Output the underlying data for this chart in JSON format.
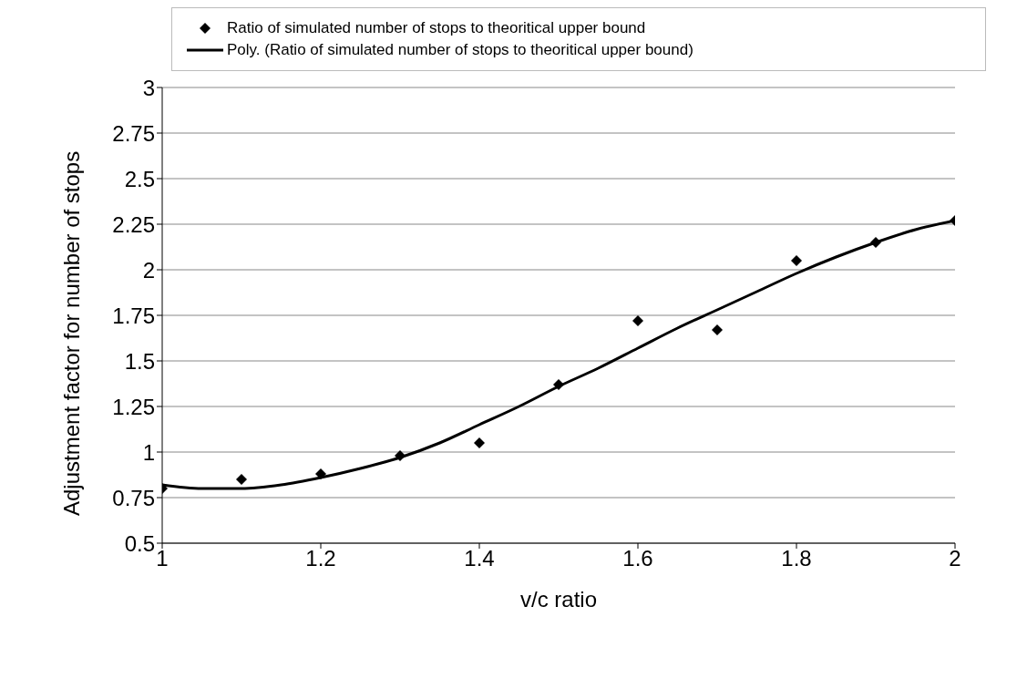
{
  "chart_data": {
    "type": "scatter",
    "xlabel": "v/c ratio",
    "ylabel": "Adjustment factor for number of stops",
    "xlim": [
      1,
      2
    ],
    "xticks": [
      1,
      1.2,
      1.4,
      1.6,
      1.8,
      2
    ],
    "ylim": [
      0.5,
      3
    ],
    "yticks": [
      0.5,
      0.75,
      1,
      1.25,
      1.5,
      1.75,
      2,
      2.25,
      2.5,
      2.75,
      3
    ],
    "grid": "y",
    "legend": "top",
    "series": [
      {
        "name": "Ratio of simulated number of stops to theoritical upper bound",
        "marker": "diamond",
        "color": "#000000",
        "x": [
          1,
          1.1,
          1.2,
          1.3,
          1.4,
          1.5,
          1.6,
          1.7,
          1.8,
          1.9,
          2
        ],
        "values": [
          0.8,
          0.85,
          0.88,
          0.98,
          1.05,
          1.37,
          1.72,
          1.67,
          2.05,
          2.15,
          2.27
        ]
      },
      {
        "name": "Poly. (Ratio of simulated number of stops to theoritical upper bound)",
        "type": "line",
        "marker": "none",
        "color": "#000000",
        "x": [
          1,
          1.05,
          1.1,
          1.15,
          1.2,
          1.25,
          1.3,
          1.35,
          1.4,
          1.45,
          1.5,
          1.55,
          1.6,
          1.65,
          1.7,
          1.75,
          1.8,
          1.85,
          1.9,
          1.95,
          2
        ],
        "values": [
          0.82,
          0.8,
          0.8,
          0.82,
          0.86,
          0.91,
          0.97,
          1.05,
          1.15,
          1.25,
          1.36,
          1.46,
          1.57,
          1.68,
          1.78,
          1.88,
          1.98,
          2.07,
          2.15,
          2.22,
          2.27
        ]
      }
    ]
  }
}
